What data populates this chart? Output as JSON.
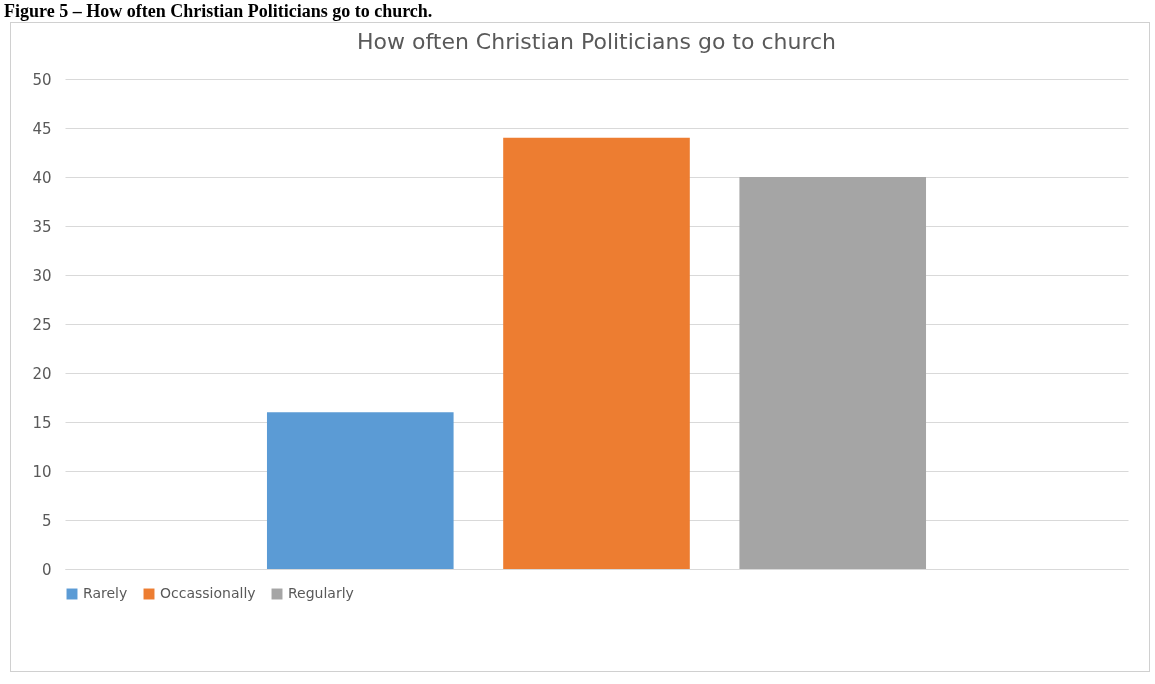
{
  "chart_data": {
    "type": "bar",
    "title": "How often Christian Politicians go to church",
    "annotations": [
      "Figure 5 – How often Christian Politicians go to church."
    ],
    "categories": [
      null
    ],
    "series": [
      {
        "name": "Rarely",
        "color": "#5b9bd5",
        "values": [
          16
        ]
      },
      {
        "name": "Occassionally",
        "color": "#ed7d31",
        "values": [
          44
        ]
      },
      {
        "name": "Regularly",
        "color": "#a5a5a5",
        "values": [
          40
        ]
      }
    ],
    "ylim": [
      0,
      50
    ],
    "yticks": [
      0,
      5,
      10,
      15,
      20,
      25,
      30,
      35,
      40,
      45,
      50
    ],
    "grid": "y",
    "legend": "bottom"
  }
}
